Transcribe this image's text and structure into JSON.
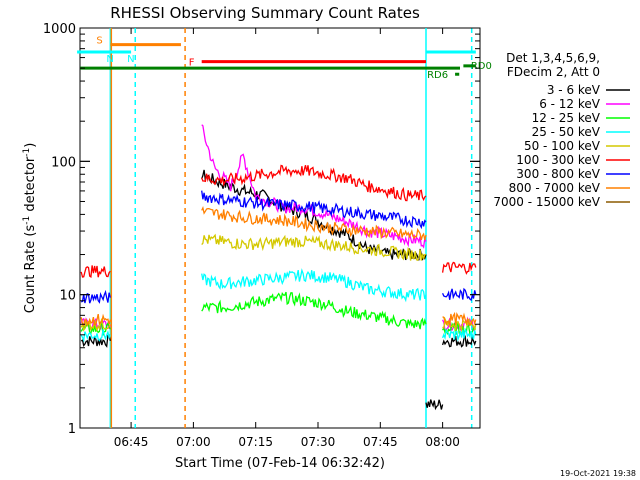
{
  "chart_data": {
    "type": "line",
    "title": "RHESSI Observing Summary Count Rates",
    "xlabel": "Start Time (07-Feb-14 06:32:42)",
    "ylabel_main": "Count Rate (s",
    "ylabel_sup": "-1",
    "ylabel_rest": " detector",
    "ylabel_close": ")",
    "y_scale": "log",
    "ylim": [
      1,
      1000
    ],
    "xlim": [
      "06:32:42",
      "08:09:00"
    ],
    "x_ticks": [
      "06:45",
      "07:00",
      "07:15",
      "07:30",
      "07:45",
      "08:00"
    ],
    "y_ticks": [
      "1",
      "10",
      "100",
      "1000"
    ],
    "grid": false,
    "legend_position": "right",
    "legend_header": [
      "Det 1,3,4,5,6,9,",
      "FDecim 2, Att 0"
    ],
    "series": [
      {
        "name": "3 - 6 keV",
        "color": "#000000",
        "segments": [
          {
            "x": [
              "06:33",
              "06:40"
            ],
            "y": [
              4.5,
              4.5
            ]
          },
          {
            "x": [
              "07:02",
              "07:06",
              "07:12",
              "07:17",
              "07:22",
              "07:27",
              "07:32",
              "07:37",
              "07:42",
              "07:47",
              "07:52",
              "07:56"
            ],
            "y": [
              80,
              70,
              60,
              55,
              45,
              40,
              33,
              28,
              22,
              20,
              20,
              20
            ]
          },
          {
            "x": [
              "07:56",
              "08:00"
            ],
            "y": [
              1.5,
              1.5
            ]
          },
          {
            "x": [
              "08:00",
              "08:08"
            ],
            "y": [
              4.5,
              4.5
            ]
          }
        ]
      },
      {
        "name": "6 - 12 keV",
        "color": "#ff00ff",
        "segments": [
          {
            "x": [
              "06:33",
              "06:40"
            ],
            "y": [
              6,
              6
            ]
          },
          {
            "x": [
              "07:02",
              "07:05",
              "07:09",
              "07:12",
              "07:15",
              "07:18",
              "07:22",
              "07:27",
              "07:32",
              "07:37",
              "07:42",
              "07:47",
              "07:52",
              "07:56"
            ],
            "y": [
              180,
              90,
              65,
              110,
              55,
              50,
              45,
              45,
              40,
              35,
              30,
              28,
              26,
              25
            ]
          },
          {
            "x": [
              "08:00",
              "08:08"
            ],
            "y": [
              6,
              6
            ]
          }
        ]
      },
      {
        "name": "12 - 25 keV",
        "color": "#00ff00",
        "segments": [
          {
            "x": [
              "06:33",
              "06:40"
            ],
            "y": [
              5.5,
              5.5
            ]
          },
          {
            "x": [
              "07:02",
              "07:07",
              "07:12",
              "07:17",
              "07:22",
              "07:27",
              "07:32",
              "07:37",
              "07:42",
              "07:47",
              "07:52",
              "07:56"
            ],
            "y": [
              8,
              8,
              8.5,
              9,
              9.5,
              9,
              8.5,
              7.5,
              7,
              6.5,
              6,
              6
            ]
          },
          {
            "x": [
              "08:00",
              "08:08"
            ],
            "y": [
              5.5,
              5.5
            ]
          }
        ]
      },
      {
        "name": "25 - 50 keV",
        "color": "#00ffff",
        "segments": [
          {
            "x": [
              "06:33",
              "06:40"
            ],
            "y": [
              5,
              5
            ]
          },
          {
            "x": [
              "07:02",
              "07:07",
              "07:12",
              "07:17",
              "07:22",
              "07:27",
              "07:32",
              "07:37",
              "07:42",
              "07:47",
              "07:52",
              "07:56"
            ],
            "y": [
              13,
              12,
              12.5,
              13,
              13.5,
              14,
              13.5,
              12.5,
              11,
              10.5,
              10,
              10
            ]
          },
          {
            "x": [
              "08:00",
              "08:08"
            ],
            "y": [
              5,
              5
            ]
          }
        ]
      },
      {
        "name": "50 - 100 keV",
        "color": "#d4c800",
        "segments": [
          {
            "x": [
              "06:33",
              "06:40"
            ],
            "y": [
              6,
              6
            ]
          },
          {
            "x": [
              "07:02",
              "07:07",
              "07:12",
              "07:17",
              "07:22",
              "07:27",
              "07:32",
              "07:37",
              "07:42",
              "07:47",
              "07:52",
              "07:56"
            ],
            "y": [
              26,
              25,
              24,
              24,
              25,
              25,
              24,
              23,
              22,
              21,
              20,
              20
            ]
          },
          {
            "x": [
              "08:00",
              "08:08"
            ],
            "y": [
              6,
              6
            ]
          }
        ]
      },
      {
        "name": "100 - 300 keV",
        "color": "#ff0000",
        "segments": [
          {
            "x": [
              "06:33",
              "06:40"
            ],
            "y": [
              15,
              15
            ]
          },
          {
            "x": [
              "07:02",
              "07:07",
              "07:12",
              "07:17",
              "07:22",
              "07:27",
              "07:32",
              "07:37",
              "07:42",
              "07:47",
              "07:52",
              "07:56"
            ],
            "y": [
              75,
              72,
              75,
              80,
              85,
              85,
              80,
              75,
              65,
              60,
              55,
              55
            ]
          },
          {
            "x": [
              "08:00",
              "08:08"
            ],
            "y": [
              16,
              16
            ]
          }
        ]
      },
      {
        "name": "300 - 800 keV",
        "color": "#0000ff",
        "segments": [
          {
            "x": [
              "06:33",
              "06:40"
            ],
            "y": [
              9.5,
              9.5
            ]
          },
          {
            "x": [
              "07:02",
              "07:07",
              "07:12",
              "07:17",
              "07:22",
              "07:27",
              "07:32",
              "07:37",
              "07:42",
              "07:47",
              "07:52",
              "07:56"
            ],
            "y": [
              55,
              52,
              50,
              48,
              47,
              46,
              44,
              42,
              40,
              38,
              36,
              35
            ]
          },
          {
            "x": [
              "08:00",
              "08:08"
            ],
            "y": [
              10,
              10
            ]
          }
        ]
      },
      {
        "name": "800 - 7000 keV",
        "color": "#ff8000",
        "segments": [
          {
            "x": [
              "06:33",
              "06:40"
            ],
            "y": [
              6.5,
              6.5
            ]
          },
          {
            "x": [
              "07:02",
              "07:07",
              "07:12",
              "07:17",
              "07:22",
              "07:27",
              "07:32",
              "07:37",
              "07:42",
              "07:47",
              "07:52",
              "07:56"
            ],
            "y": [
              42,
              40,
              38,
              37,
              36,
              34,
              32,
              31,
              30,
              29,
              28,
              28
            ]
          },
          {
            "x": [
              "08:00",
              "08:08"
            ],
            "y": [
              6.5,
              6.5
            ]
          }
        ]
      },
      {
        "name": "7000 - 15000 keV",
        "color": "#8b5a00",
        "segments": []
      }
    ],
    "flags": [
      {
        "label": "S",
        "color": "#ff8000",
        "x": [
          "06:40",
          "06:57"
        ],
        "y": 750
      },
      {
        "label": "N",
        "color": "#00ffff",
        "x": [
          "06:32",
          "06:40"
        ],
        "y": 660
      },
      {
        "label": "N",
        "color": "#00ffff",
        "x": [
          "06:40",
          "06:45"
        ],
        "y": 660
      },
      {
        "label": "F",
        "color": "#ff0000",
        "x": [
          "07:02",
          "07:56"
        ],
        "y": 560
      },
      {
        "label": "",
        "color": "#00ffff",
        "x": [
          "07:56",
          "08:08"
        ],
        "y": 660
      },
      {
        "label": "RD0",
        "color": "#008000",
        "x": [
          "08:05",
          "08:08"
        ],
        "y": 520
      },
      {
        "label": "RD6",
        "color": "#008000",
        "x": [
          "08:03",
          "08:04"
        ],
        "y": 450
      }
    ],
    "flag_labels": {
      "S": "S",
      "N": "N",
      "F": "F",
      "RD0": "RD0",
      "RD6": "RD6"
    },
    "baseline": {
      "color": "#008000",
      "y": 500
    },
    "vlines": [
      {
        "x": "06:40",
        "color": "#00ffff",
        "style": "solid"
      },
      {
        "x": "06:40",
        "color": "#ff8000",
        "style": "solid"
      },
      {
        "x": "06:46",
        "color": "#00ffff",
        "style": "dashed"
      },
      {
        "x": "06:58",
        "color": "#ff8000",
        "style": "dashed"
      },
      {
        "x": "07:56",
        "color": "#00ffff",
        "style": "solid"
      },
      {
        "x": "08:07",
        "color": "#00ffff",
        "style": "dashed"
      }
    ],
    "timestamp": "19-Oct-2021 19:38"
  }
}
